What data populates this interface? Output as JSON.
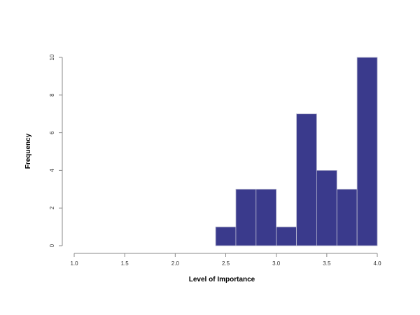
{
  "chart_data": {
    "type": "bar",
    "subtype": "histogram",
    "xlabel": "Level of Importance",
    "ylabel": "Frequency",
    "xlim": [
      1.0,
      4.0
    ],
    "ylim": [
      0,
      10
    ],
    "x_ticks": [
      "1.0",
      "1.5",
      "2.0",
      "2.5",
      "3.0",
      "3.5",
      "4.0"
    ],
    "y_ticks": [
      "0",
      "2",
      "4",
      "6",
      "8",
      "10"
    ],
    "bins": [
      {
        "start": 2.4,
        "end": 2.6,
        "count": 1
      },
      {
        "start": 2.6,
        "end": 2.8,
        "count": 3
      },
      {
        "start": 2.8,
        "end": 3.0,
        "count": 3
      },
      {
        "start": 3.0,
        "end": 3.2,
        "count": 1
      },
      {
        "start": 3.2,
        "end": 3.4,
        "count": 7
      },
      {
        "start": 3.4,
        "end": 3.6,
        "count": 4
      },
      {
        "start": 3.6,
        "end": 3.8,
        "count": 3
      },
      {
        "start": 3.8,
        "end": 4.0,
        "count": 10
      }
    ],
    "bar_color": "#3a3a8c",
    "grid": false,
    "legend": "none"
  }
}
